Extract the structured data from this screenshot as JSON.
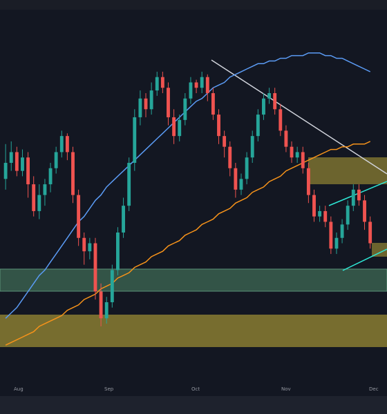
{
  "chart_data": {
    "type": "candlestick",
    "x_tick_labels": [
      "Aug",
      "Sep",
      "Oct",
      "Nov",
      "Dec"
    ],
    "colors": {
      "up": "#26a69a",
      "down": "#ef5350",
      "sma_fast": "#5b9cf6",
      "sma_slow": "#f7931a",
      "trendline": "#d1d4dc",
      "channel": "#2ee8d6",
      "zone_yellow": "#7c7230",
      "zone_green": "#35584a",
      "background": "#131722"
    },
    "candles": [
      [
        0,
        202,
        208,
        215,
        198
      ],
      [
        1,
        208,
        212,
        216,
        205
      ],
      [
        2,
        212,
        205,
        214,
        203
      ],
      [
        3,
        205,
        210,
        213,
        203
      ],
      [
        4,
        210,
        200,
        212,
        195
      ],
      [
        5,
        200,
        190,
        203,
        188
      ],
      [
        6,
        190,
        196,
        200,
        187
      ],
      [
        7,
        196,
        200,
        202,
        192
      ],
      [
        8,
        200,
        206,
        208,
        197
      ],
      [
        9,
        206,
        212,
        214,
        204
      ],
      [
        10,
        212,
        218,
        220,
        210
      ],
      [
        11,
        218,
        212,
        219,
        209
      ],
      [
        12,
        212,
        196,
        214,
        193
      ],
      [
        13,
        196,
        180,
        198,
        177
      ],
      [
        14,
        180,
        175,
        182,
        170
      ],
      [
        15,
        175,
        178,
        180,
        172
      ],
      [
        16,
        178,
        160,
        180,
        157
      ],
      [
        17,
        160,
        150,
        163,
        147
      ],
      [
        18,
        150,
        156,
        158,
        148
      ],
      [
        19,
        156,
        168,
        170,
        154
      ],
      [
        20,
        168,
        182,
        184,
        166
      ],
      [
        21,
        182,
        192,
        195,
        180
      ],
      [
        22,
        192,
        208,
        210,
        190
      ],
      [
        23,
        208,
        225,
        228,
        205
      ],
      [
        24,
        225,
        232,
        235,
        222
      ],
      [
        25,
        232,
        228,
        234,
        225
      ],
      [
        26,
        228,
        235,
        238,
        226
      ],
      [
        27,
        235,
        240,
        242,
        233
      ],
      [
        28,
        240,
        236,
        242,
        234
      ],
      [
        29,
        236,
        225,
        238,
        222
      ],
      [
        30,
        225,
        218,
        228,
        215
      ],
      [
        31,
        218,
        224,
        226,
        216
      ],
      [
        32,
        224,
        232,
        234,
        222
      ],
      [
        33,
        232,
        238,
        240,
        230
      ],
      [
        34,
        238,
        236,
        239,
        234
      ],
      [
        35,
        236,
        240,
        242,
        234
      ],
      [
        36,
        240,
        234,
        241,
        231
      ],
      [
        37,
        234,
        226,
        236,
        224
      ],
      [
        38,
        226,
        218,
        228,
        215
      ],
      [
        39,
        218,
        214,
        220,
        210
      ],
      [
        40,
        214,
        206,
        216,
        203
      ],
      [
        41,
        206,
        198,
        208,
        195
      ],
      [
        42,
        198,
        202,
        204,
        196
      ],
      [
        43,
        202,
        210,
        212,
        200
      ],
      [
        44,
        210,
        218,
        220,
        208
      ],
      [
        45,
        218,
        226,
        228,
        216
      ],
      [
        46,
        226,
        232,
        234,
        224
      ],
      [
        47,
        232,
        234,
        236,
        230
      ],
      [
        48,
        234,
        228,
        236,
        226
      ],
      [
        49,
        228,
        220,
        230,
        218
      ],
      [
        50,
        220,
        214,
        222,
        212
      ],
      [
        51,
        214,
        210,
        216,
        208
      ],
      [
        52,
        210,
        212,
        214,
        208
      ],
      [
        53,
        212,
        206,
        214,
        204
      ],
      [
        54,
        206,
        196,
        208,
        193
      ],
      [
        55,
        196,
        188,
        198,
        186
      ],
      [
        56,
        188,
        190,
        192,
        186
      ],
      [
        57,
        190,
        186,
        192,
        184
      ],
      [
        58,
        186,
        176,
        188,
        174
      ],
      [
        59,
        176,
        180,
        182,
        174
      ],
      [
        60,
        180,
        185,
        187,
        178
      ],
      [
        61,
        185,
        192,
        194,
        183
      ],
      [
        62,
        192,
        198,
        200,
        190
      ],
      [
        63,
        198,
        194,
        200,
        192
      ],
      [
        64,
        194,
        186,
        196,
        183
      ],
      [
        65,
        186,
        178,
        188,
        176
      ]
    ],
    "sma_fast_values": [
      150,
      152,
      154,
      157,
      160,
      163,
      166,
      168,
      171,
      174,
      177,
      180,
      183,
      186,
      188,
      191,
      194,
      196,
      199,
      201,
      203,
      205,
      207,
      209,
      211,
      213,
      215,
      217,
      219,
      221,
      223,
      225,
      227,
      229,
      231,
      232,
      234,
      236,
      237,
      238,
      240,
      241,
      242,
      243,
      244,
      245,
      245,
      246,
      246,
      247,
      247,
      248,
      248,
      248,
      249,
      249,
      249,
      248,
      248,
      247,
      247,
      246,
      245,
      244,
      243,
      242
    ],
    "sma_slow_values": [
      140,
      141,
      142,
      143,
      144,
      145,
      147,
      148,
      149,
      150,
      151,
      153,
      154,
      155,
      157,
      158,
      159,
      161,
      162,
      163,
      165,
      166,
      167,
      169,
      170,
      171,
      173,
      174,
      175,
      177,
      178,
      179,
      181,
      182,
      183,
      185,
      186,
      187,
      189,
      190,
      191,
      193,
      194,
      195,
      197,
      198,
      199,
      201,
      202,
      203,
      205,
      206,
      207,
      208,
      209,
      210,
      211,
      212,
      213,
      213,
      214,
      214,
      215,
      215,
      215,
      216
    ],
    "y_range": [
      130,
      260
    ],
    "x_range": [
      -1,
      68
    ]
  }
}
